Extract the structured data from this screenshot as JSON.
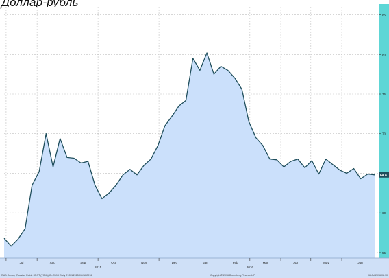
{
  "chart_data": {
    "type": "area",
    "title": "Доллар-рубль",
    "x": [
      "2015-06-29",
      "2015-07-06",
      "2015-07-13",
      "2015-07-20",
      "2015-07-27",
      "2015-08-03",
      "2015-08-10",
      "2015-08-17",
      "2015-08-24",
      "2015-08-31",
      "2015-09-07",
      "2015-09-14",
      "2015-09-21",
      "2015-09-28",
      "2015-10-05",
      "2015-10-12",
      "2015-10-19",
      "2015-10-26",
      "2015-11-02",
      "2015-11-09",
      "2015-11-16",
      "2015-11-23",
      "2015-11-30",
      "2015-12-07",
      "2015-12-14",
      "2015-12-21",
      "2015-12-28",
      "2016-01-04",
      "2016-01-11",
      "2016-01-18",
      "2016-01-25",
      "2016-02-01",
      "2016-02-08",
      "2016-02-15",
      "2016-02-22",
      "2016-02-29",
      "2016-03-07",
      "2016-03-14",
      "2016-03-21",
      "2016-03-28",
      "2016-04-04",
      "2016-04-11",
      "2016-04-18",
      "2016-04-25",
      "2016-05-02",
      "2016-05-09",
      "2016-05-16",
      "2016-05-23",
      "2016-05-30",
      "2016-06-06",
      "2016-06-13",
      "2016-06-20",
      "2016-06-27",
      "2016-07-04"
    ],
    "values": [
      56.8,
      55.8,
      56.7,
      58.0,
      63.5,
      65.2,
      70.0,
      65.8,
      69.4,
      67.0,
      66.9,
      66.3,
      66.5,
      63.5,
      61.8,
      62.5,
      63.5,
      64.8,
      65.5,
      64.8,
      66.0,
      66.8,
      68.5,
      71.0,
      72.2,
      73.5,
      74.2,
      79.5,
      78.0,
      80.2,
      77.5,
      78.5,
      78.0,
      77.0,
      75.6,
      71.5,
      69.5,
      68.5,
      66.8,
      66.7,
      65.8,
      66.5,
      66.8,
      65.7,
      66.6,
      64.9,
      66.8,
      66.1,
      65.4,
      65.0,
      65.6,
      64.3,
      64.9,
      64.8
    ],
    "legend_last_label": "64.8",
    "x_ticks": [
      {
        "date": "2015-07-01",
        "label": "Jul"
      },
      {
        "date": "2015-08-01",
        "label": "Aug"
      },
      {
        "date": "2015-09-01",
        "label": "Sep"
      },
      {
        "date": "2015-10-01",
        "label": "Oct"
      },
      {
        "date": "2015-11-01",
        "label": "Nov"
      },
      {
        "date": "2015-12-01",
        "label": "Dec"
      },
      {
        "date": "2016-01-01",
        "label": "Jan"
      },
      {
        "date": "2016-02-01",
        "label": "Feb"
      },
      {
        "date": "2016-03-01",
        "label": "Mar"
      },
      {
        "date": "2016-04-01",
        "label": "Apr"
      },
      {
        "date": "2016-05-01",
        "label": "May"
      },
      {
        "date": "2016-06-01",
        "label": "Jun"
      }
    ],
    "year_labels": [
      {
        "date": "2015-10-01",
        "label": "2015"
      },
      {
        "date": "2016-03-01",
        "label": "2016"
      }
    ],
    "y_ticks": [
      {
        "value": 55,
        "label": "55"
      },
      {
        "value": 60,
        "label": "60"
      },
      {
        "value": 65,
        "label": "65"
      },
      {
        "value": 70,
        "label": "70"
      },
      {
        "value": 75,
        "label": "75"
      },
      {
        "value": 80,
        "label": "80"
      },
      {
        "value": 85,
        "label": "85"
      }
    ],
    "ylim": [
      54.3,
      86
    ],
    "xlim": [
      "2015-06-29",
      "2016-07-08"
    ],
    "grid": true,
    "colors": {
      "line": "#1f4e5c",
      "fill": "#cbe0fb",
      "right_bar": "#5ed6d6",
      "bottom_bar": "#cfe0f7",
      "grid": "#bfbfbf"
    }
  },
  "footer": {
    "left": "RUB Curncy (Russian Ruble SPOT (TOM)) CL:CYMI   Daily 07JUL2015-06JUL2016",
    "center": "Copyright© 2016 Bloomberg Finance L.P.",
    "right": "06-Jul-2016 08:10"
  }
}
